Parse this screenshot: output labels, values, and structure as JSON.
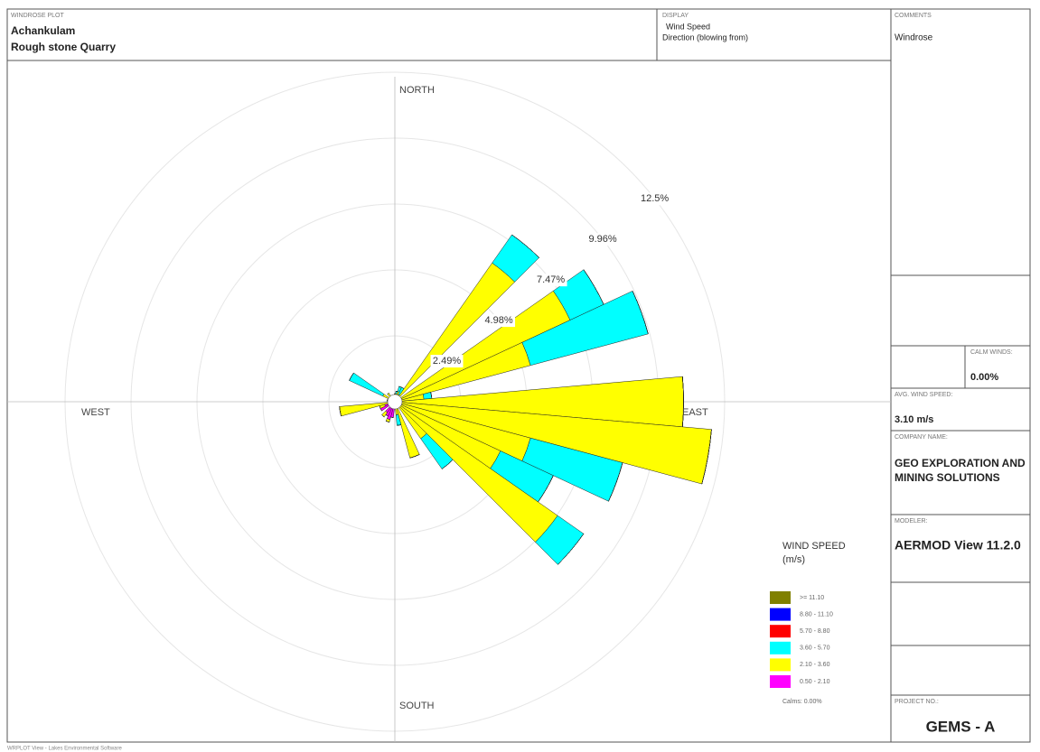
{
  "header": {
    "label": "WINDROSE PLOT",
    "title": [
      "Achankulam",
      "Rough stone Quarry"
    ]
  },
  "display": {
    "label": "DISPLAY",
    "lines": [
      "Wind Speed",
      "Direction (blowing from)"
    ]
  },
  "comments": {
    "label": "COMMENTS",
    "text": "Windrose"
  },
  "calm_winds": {
    "label": "CALM WINDS:",
    "value": "0.00%"
  },
  "avg_wind_speed": {
    "label": "AVG. WIND SPEED:",
    "value": "3.10 m/s"
  },
  "company_name": {
    "label": "COMPANY NAME:",
    "lines": [
      "GEO EXPLORATION AND",
      "MINING SOLUTIONS"
    ]
  },
  "modeler": {
    "label": "MODELER:",
    "value": "AERMOD View 11.2.0"
  },
  "project_no": {
    "label": "PROJECT NO.:",
    "value": "GEMS - A"
  },
  "footer": "WRPLOT View - Lakes Environmental Software",
  "chart_data": {
    "type": "windrose",
    "compass": {
      "north": "NORTH",
      "east": "EAST",
      "south": "SOUTH",
      "west": "WEST"
    },
    "x": [
      0,
      10,
      20,
      30,
      40,
      50,
      60,
      70,
      80,
      90,
      100,
      110,
      120,
      130,
      140,
      150,
      160,
      170,
      180,
      190,
      200,
      210,
      220,
      230,
      240,
      250,
      260,
      270,
      280,
      290,
      300,
      310,
      320,
      330,
      340,
      350
    ],
    "rlim": [
      0,
      12.45
    ],
    "rticks": [
      {
        "value": 2.49,
        "label": "2.49%"
      },
      {
        "value": 4.98,
        "label": "4.98%"
      },
      {
        "value": 7.47,
        "label": "7.47%"
      },
      {
        "value": 9.96,
        "label": "9.96%"
      },
      {
        "value": 12.45,
        "label": "12.5%"
      }
    ],
    "legend_title": [
      "WIND SPEED",
      "(m/s)"
    ],
    "calms_label": "Calms: 0.00%",
    "series": [
      {
        "name": ">= 11.10",
        "color": "#808000",
        "values": [
          0,
          0,
          0,
          0,
          0,
          0,
          0,
          0,
          0,
          0,
          0,
          0,
          0,
          0,
          0,
          0,
          0,
          0,
          0,
          0,
          0,
          0,
          0,
          0,
          0,
          0,
          0,
          0,
          0,
          0,
          0,
          0,
          0,
          0,
          0,
          0
        ]
      },
      {
        "name": "8.80 - 11.10",
        "color": "#0000ff",
        "values": [
          0,
          0,
          0,
          0,
          0,
          0,
          0,
          0,
          0,
          0,
          0,
          0,
          0,
          0,
          0,
          0,
          0,
          0,
          0,
          0,
          0,
          0,
          0,
          0,
          0,
          0,
          0,
          0,
          0,
          0,
          0,
          0,
          0,
          0,
          0,
          0
        ]
      },
      {
        "name": "5.70 - 8.80",
        "color": "#ff0000",
        "values": [
          0,
          0,
          0,
          0,
          0,
          0,
          0,
          0,
          0,
          0,
          0,
          0,
          0,
          0,
          0,
          0,
          0,
          0,
          0,
          0,
          0,
          0,
          0,
          0,
          0,
          0,
          0,
          0,
          0,
          0,
          0,
          0,
          0,
          0,
          0,
          0
        ]
      },
      {
        "name": "3.60 - 5.70",
        "color": "#00ffff",
        "values": [
          0,
          0.1,
          0.2,
          0.3,
          1.3,
          0,
          1.4,
          4.6,
          0.3,
          0,
          0,
          3.6,
          2.2,
          1.2,
          1.4,
          0,
          0,
          0.4,
          0,
          0,
          0,
          0,
          0,
          0,
          0,
          0,
          0,
          0,
          0,
          0,
          1.4,
          0,
          0,
          0,
          0,
          0
        ]
      },
      {
        "name": "2.10 - 3.60",
        "color": "#ffff00",
        "values": [
          0.2,
          0.2,
          0.3,
          0.2,
          6.3,
          0,
          7.2,
          5.2,
          1.0,
          10.8,
          11.9,
          5.2,
          4.3,
          7.4,
          1.6,
          0,
          2.0,
          0.3,
          0,
          0,
          0.1,
          0,
          0.2,
          0,
          0,
          0.2,
          1.9,
          0,
          0.2,
          0,
          0.4,
          0,
          0.3,
          0,
          0.1,
          0
        ]
      },
      {
        "name": "0.50 - 2.10",
        "color": "#ff00ff",
        "values": [
          0.1,
          0.1,
          0.1,
          0.1,
          0.1,
          0,
          0.1,
          0.1,
          0.1,
          0.1,
          0.1,
          0.1,
          0.1,
          0.1,
          0.1,
          0,
          0.2,
          0.2,
          0,
          0.6,
          0.7,
          0.6,
          0.5,
          0,
          0.6,
          0.4,
          0.2,
          0,
          0.1,
          0,
          0.1,
          0,
          0.1,
          0,
          0.1,
          0
        ]
      }
    ]
  }
}
